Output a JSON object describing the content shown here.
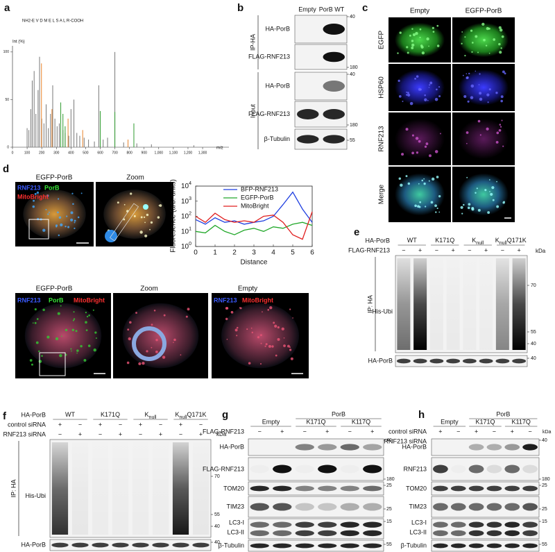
{
  "panels": {
    "a": {
      "letter": "a",
      "peptide": "NH2-E V D M E L S A L R-COOH",
      "y_label": "Int (%)",
      "x_label": "m/z",
      "xlim": [
        0,
        1480
      ],
      "ylim": [
        0,
        105
      ],
      "xticks": [
        0,
        100,
        200,
        300,
        400,
        500,
        600,
        700,
        800,
        900,
        {
          "value": 1000,
          "label": "1,000"
        },
        {
          "value": 1100,
          "label": "1,100"
        },
        {
          "value": 1200,
          "label": "1,200"
        },
        {
          "value": 1300,
          "label": "1,300"
        }
      ],
      "yticks": [
        0,
        50,
        100
      ],
      "peaks": [
        {
          "color": "#777777",
          "mz": [
            100,
            112,
            125,
            135,
            148,
            160,
            175,
            185,
            200,
            215,
            230,
            245,
            260,
            275,
            290,
            305,
            320,
            345,
            360,
            385,
            400,
            420,
            440,
            460,
            490,
            520,
            560,
            590,
            620,
            650,
            700,
            760,
            850,
            950,
            1240
          ],
          "intensity": [
            20,
            18,
            40,
            70,
            80,
            35,
            60,
            95,
            30,
            25,
            45,
            20,
            35,
            65,
            30,
            22,
            25,
            18,
            15,
            12,
            40,
            50,
            15,
            12,
            10,
            8,
            6,
            65,
            8,
            10,
            100,
            5,
            4,
            3,
            2
          ]
        },
        {
          "color": "#e8822a",
          "mz": [
            198,
            270,
            380,
            480,
            790
          ],
          "intensity": [
            88,
            40,
            30,
            18,
            8
          ]
        },
        {
          "color": "#2e9a2e",
          "mz": [
            330,
            345,
            360,
            600,
            700,
            830
          ],
          "intensity": [
            47,
            35,
            22,
            38,
            37,
            25
          ]
        }
      ]
    },
    "b": {
      "letter": "b",
      "lanes": [
        "Empty",
        "PorB WT"
      ],
      "groups": [
        "IP-HA",
        "Input"
      ],
      "rows": [
        "HA-PorB",
        "FLAG-RNF213",
        "HA-PorB",
        "FLAG-RNF213",
        "β-Tubulin"
      ],
      "markers": [
        40,
        180,
        40,
        180,
        55
      ]
    },
    "c": {
      "letter": "c",
      "columns": [
        "Empty",
        "EGFP-PorB"
      ],
      "rows": [
        "EGFP",
        "HSP60",
        "RNF213",
        "Merge"
      ]
    },
    "d": {
      "letter": "d",
      "top_titles": [
        "EGFP-PorB",
        "Zoom"
      ],
      "channels": [
        "RNF213",
        "PorB",
        "MitoBright"
      ],
      "plot": {
        "y_label": "Fluoresence (arb. units)",
        "x_label": "Distance",
        "xlim": [
          0,
          6
        ],
        "ylim": [
          1,
          10000
        ],
        "yscale": "log",
        "xticks": [
          0,
          1,
          2,
          3,
          4,
          5,
          6
        ],
        "yticks": [
          {
            "value": 1,
            "label": "10",
            "exponent": "0"
          },
          {
            "value": 10,
            "label": "10",
            "exponent": "1"
          },
          {
            "value": 100,
            "label": "10",
            "exponent": "2"
          },
          {
            "value": 1000,
            "label": "10",
            "exponent": "3"
          },
          {
            "value": 10000,
            "label": "10",
            "exponent": "4"
          }
        ],
        "x": [
          0,
          0.5,
          1,
          1.5,
          2,
          2.5,
          3,
          3.5,
          4,
          4.5,
          5,
          5.5,
          6
        ],
        "series": [
          {
            "name": "BFP-RNF213",
            "color": "#1f3fe0",
            "values": [
              60,
              30,
              80,
              40,
              50,
              30,
              40,
              50,
              100,
              600,
              4000,
              300,
              40
            ]
          },
          {
            "name": "EGFP-PorB",
            "color": "#22a82a",
            "values": [
              10,
              8,
              25,
              10,
              6,
              12,
              16,
              10,
              20,
              16,
              30,
              40,
              25
            ]
          },
          {
            "name": "MitoBright",
            "color": "#e01e1e",
            "values": [
              100,
              40,
              160,
              60,
              40,
              50,
              40,
              100,
              120,
              40,
              6,
              3,
              200
            ]
          }
        ]
      },
      "bottom_titles": [
        "EGFP-PorB",
        "Zoom",
        "Empty"
      ]
    },
    "e": {
      "letter": "e",
      "construct": "HA-PorB",
      "variants": [
        {
          "text": "WT"
        },
        {
          "text": "K171Q"
        },
        {
          "text": "K",
          "sub": "null"
        },
        {
          "text": "K",
          "sub": "null",
          "rest": "Q171K"
        }
      ],
      "treatment": "FLAG-RNF213",
      "signs": [
        "−",
        "+",
        "−",
        "+",
        "−",
        "+",
        "−",
        "+"
      ],
      "unit": "kDa",
      "ip": "IP: HA",
      "rows": [
        "His-Ubi",
        "HA-PorB"
      ],
      "markers": [
        70,
        55,
        40,
        40
      ]
    },
    "f": {
      "letter": "f",
      "construct": "HA-PorB",
      "variants": [
        {
          "text": "WT"
        },
        {
          "text": "K171Q"
        },
        {
          "text": "K",
          "sub": "null"
        },
        {
          "text": "K",
          "sub": "null",
          "rest": "Q171K"
        }
      ],
      "treatments": [
        "control siRNA",
        "RNF213 siRNA"
      ],
      "signs": [
        [
          "+",
          "−",
          "+",
          "−",
          "+",
          "−",
          "+",
          "−"
        ],
        [
          "−",
          "+",
          "−",
          "+",
          "−",
          "+",
          "−",
          "+"
        ]
      ],
      "unit": "kDa",
      "ip": "IP: HA",
      "rows": [
        "His-Ubi",
        "HA-PorB"
      ],
      "markers": [
        70,
        55,
        40,
        40
      ]
    },
    "g": {
      "letter": "g",
      "groups": [
        "Empty",
        "PorB"
      ],
      "variants": [
        "K171Q",
        "K117Q"
      ],
      "treatment": "FLAG-RNF213",
      "signs": [
        "−",
        "+",
        "−",
        "+",
        "−",
        "+"
      ],
      "rows": [
        "HA-PorB",
        "FLAG-RNF213",
        "TOM20",
        "TIM23",
        "LC3-I",
        "LC3-II",
        "β-Tubulin"
      ],
      "markers": [
        40,
        180,
        25,
        25,
        15,
        55
      ]
    },
    "h": {
      "letter": "h",
      "groups": [
        "Empty",
        "PorB"
      ],
      "variants": [
        "K171Q",
        "K117Q"
      ],
      "treatments": [
        "control siRNA",
        "RNF213 siRNA"
      ],
      "signs": [
        [
          "+",
          "−",
          "+",
          "−",
          "+",
          "−"
        ],
        [
          "−",
          "+",
          "−",
          "+",
          "−",
          "+"
        ]
      ],
      "unit": "kDa",
      "rows": [
        "HA-PorB",
        "RNF213",
        "TOM20",
        "TIM23",
        "LC3-I",
        "LC3-II",
        "β-Tubulin"
      ],
      "markers": [
        40,
        180,
        25,
        25,
        15,
        55
      ]
    }
  }
}
